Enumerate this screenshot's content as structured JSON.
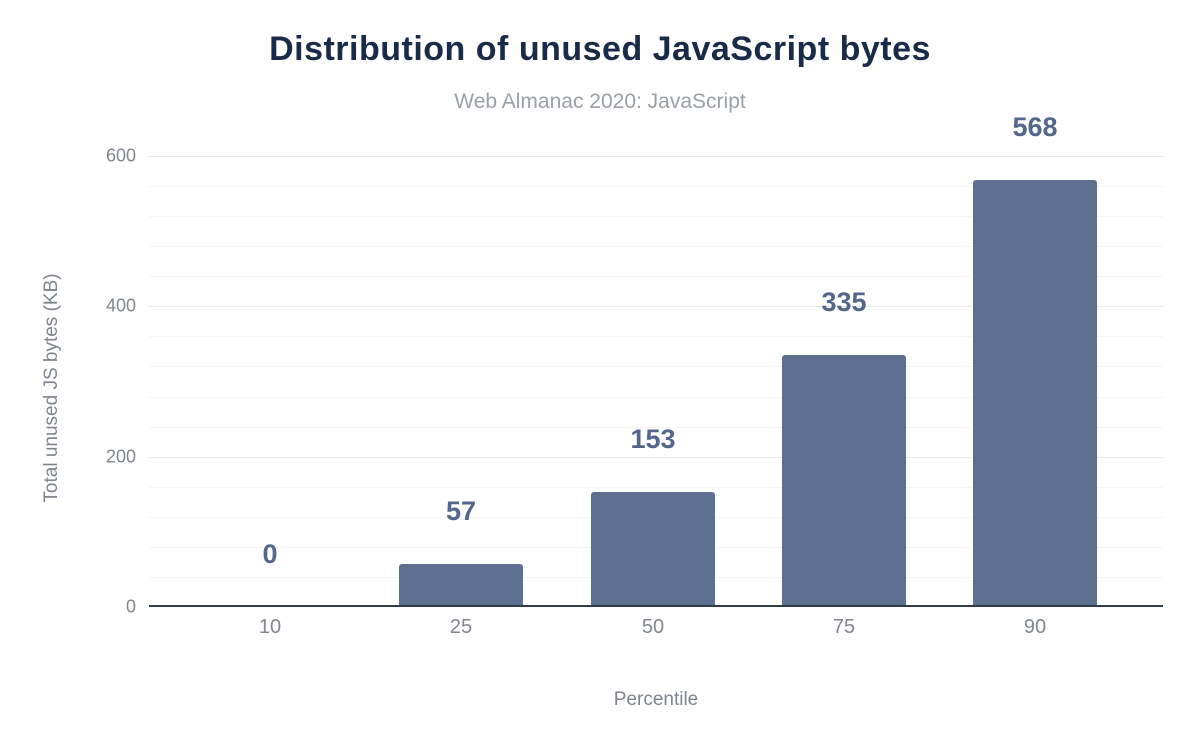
{
  "chart_data": {
    "type": "bar",
    "title": "Distribution of unused JavaScript bytes",
    "subtitle": "Web Almanac 2020: JavaScript",
    "xlabel": "Percentile",
    "ylabel": "Total unused JS bytes (KB)",
    "categories": [
      "10",
      "25",
      "50",
      "75",
      "90"
    ],
    "values": [
      0,
      57,
      153,
      335,
      568
    ],
    "data_labels": [
      "0",
      "57",
      "153",
      "335",
      "568"
    ],
    "ylim": [
      0,
      600
    ],
    "y_major_ticks": [
      0,
      200,
      400,
      600
    ],
    "y_minor_step": 40,
    "grid": "horizontal, major and minor, no vertical gridlines",
    "legend": "none",
    "colors": {
      "bar": "#5e7090",
      "data_label": "#54668b",
      "title": "#1a2b49",
      "subtitle": "#9aa0a6",
      "tick_label": "#81868f",
      "axis_title": "#7f858e",
      "major_gridline": "#e8eaed",
      "minor_gridline": "#f4f5f6",
      "axis_line": "#313a49",
      "background": "#ffffff"
    }
  }
}
